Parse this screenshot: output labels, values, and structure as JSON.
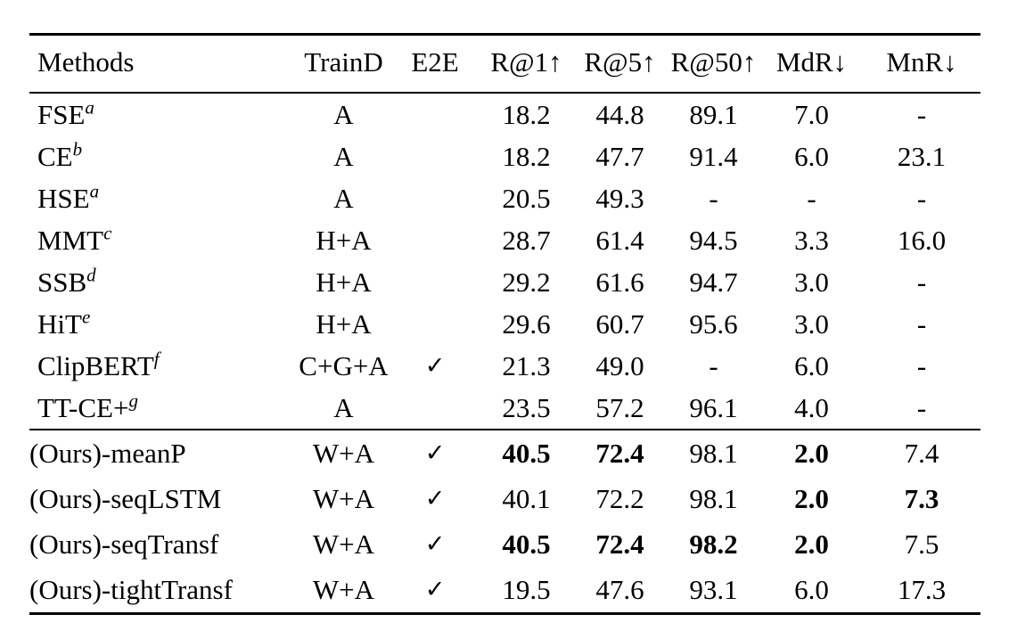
{
  "table": {
    "columns": [
      "Methods",
      "TrainD",
      "E2E",
      "R@1↑",
      "R@5↑",
      "R@50↑",
      "MdR↓",
      "MnR↓"
    ],
    "checkmark": "✓",
    "groups": [
      {
        "name": "baselines",
        "rows": [
          {
            "method": "FSE",
            "sup": "a",
            "cells": [
              {
                "t": "A"
              },
              {
                "t": ""
              },
              {
                "t": "18.2"
              },
              {
                "t": "44.8"
              },
              {
                "t": "89.1"
              },
              {
                "t": "7.0"
              },
              {
                "t": "-"
              }
            ]
          },
          {
            "method": "CE",
            "sup": "b",
            "cells": [
              {
                "t": "A"
              },
              {
                "t": ""
              },
              {
                "t": "18.2"
              },
              {
                "t": "47.7"
              },
              {
                "t": "91.4"
              },
              {
                "t": "6.0"
              },
              {
                "t": "23.1"
              }
            ]
          },
          {
            "method": "HSE",
            "sup": "a",
            "cells": [
              {
                "t": "A"
              },
              {
                "t": ""
              },
              {
                "t": "20.5"
              },
              {
                "t": "49.3"
              },
              {
                "t": "-"
              },
              {
                "t": "-"
              },
              {
                "t": "-"
              }
            ]
          },
          {
            "method": "MMT",
            "sup": "c",
            "cells": [
              {
                "t": "H+A"
              },
              {
                "t": ""
              },
              {
                "t": "28.7"
              },
              {
                "t": "61.4"
              },
              {
                "t": "94.5"
              },
              {
                "t": "3.3"
              },
              {
                "t": "16.0"
              }
            ]
          },
          {
            "method": "SSB",
            "sup": "d",
            "cells": [
              {
                "t": "H+A"
              },
              {
                "t": ""
              },
              {
                "t": "29.2"
              },
              {
                "t": "61.6"
              },
              {
                "t": "94.7"
              },
              {
                "t": "3.0"
              },
              {
                "t": "-"
              }
            ]
          },
          {
            "method": "HiT",
            "sup": "e",
            "cells": [
              {
                "t": "H+A"
              },
              {
                "t": ""
              },
              {
                "t": "29.6"
              },
              {
                "t": "60.7"
              },
              {
                "t": "95.6"
              },
              {
                "t": "3.0"
              },
              {
                "t": "-"
              }
            ]
          },
          {
            "method": "ClipBERT",
            "sup": "f",
            "cells": [
              {
                "t": "C+G+A"
              },
              {
                "t": "✓"
              },
              {
                "t": "21.3"
              },
              {
                "t": "49.0"
              },
              {
                "t": "-"
              },
              {
                "t": "6.0"
              },
              {
                "t": "-"
              }
            ]
          },
          {
            "method": "TT-CE+",
            "sup": "g",
            "cells": [
              {
                "t": "A"
              },
              {
                "t": ""
              },
              {
                "t": "23.5"
              },
              {
                "t": "57.2"
              },
              {
                "t": "96.1"
              },
              {
                "t": "4.0"
              },
              {
                "t": "-"
              }
            ]
          }
        ]
      },
      {
        "name": "ours",
        "rows": [
          {
            "method": "(Ours)-meanP",
            "sup": "",
            "cells": [
              {
                "t": "W+A"
              },
              {
                "t": "✓"
              },
              {
                "t": "40.5",
                "b": true
              },
              {
                "t": "72.4",
                "b": true
              },
              {
                "t": "98.1"
              },
              {
                "t": "2.0",
                "b": true
              },
              {
                "t": "7.4"
              }
            ]
          },
          {
            "method": "(Ours)-seqLSTM",
            "sup": "",
            "cells": [
              {
                "t": "W+A"
              },
              {
                "t": "✓"
              },
              {
                "t": "40.1"
              },
              {
                "t": "72.2"
              },
              {
                "t": "98.1"
              },
              {
                "t": "2.0",
                "b": true
              },
              {
                "t": "7.3",
                "b": true
              }
            ]
          },
          {
            "method": "(Ours)-seqTransf",
            "sup": "",
            "cells": [
              {
                "t": "W+A"
              },
              {
                "t": "✓"
              },
              {
                "t": "40.5",
                "b": true
              },
              {
                "t": "72.4",
                "b": true
              },
              {
                "t": "98.2",
                "b": true
              },
              {
                "t": "2.0",
                "b": true
              },
              {
                "t": "7.5"
              }
            ]
          },
          {
            "method": "(Ours)-tightTransf",
            "sup": "",
            "cells": [
              {
                "t": "W+A"
              },
              {
                "t": "✓"
              },
              {
                "t": "19.5"
              },
              {
                "t": "47.6"
              },
              {
                "t": "93.1"
              },
              {
                "t": "6.0"
              },
              {
                "t": "17.3"
              }
            ]
          }
        ]
      }
    ]
  }
}
